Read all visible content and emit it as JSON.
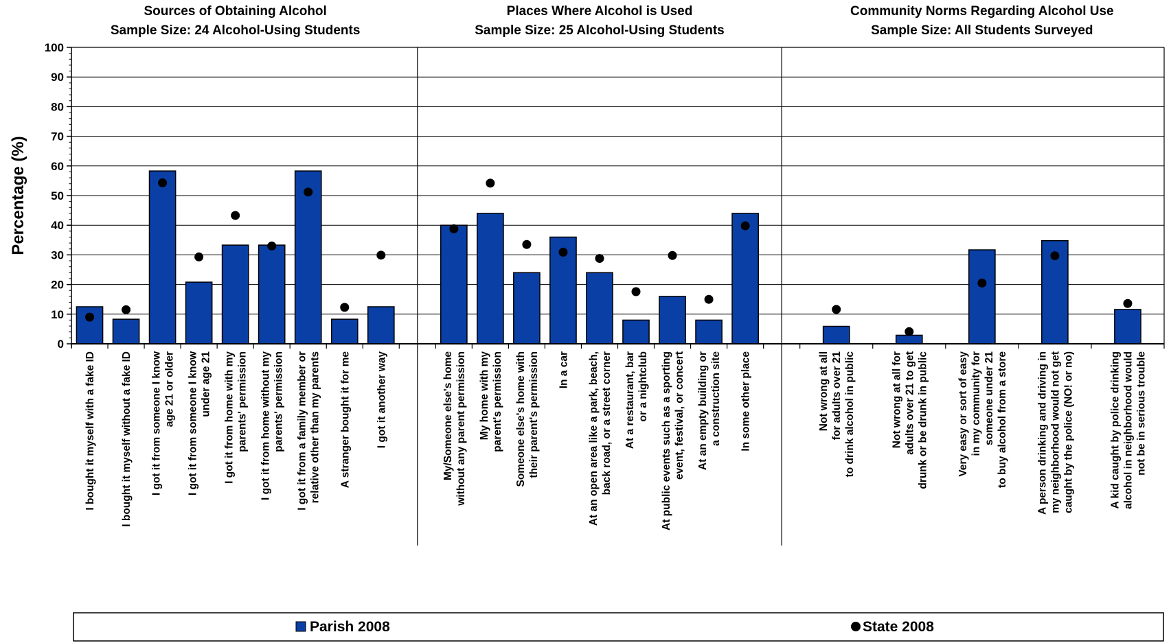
{
  "chart_data": {
    "type": "bar",
    "ylabel": "Percentage (%)",
    "ylim": [
      0,
      100
    ],
    "yticks": [
      "0",
      "10",
      "20",
      "30",
      "40",
      "50",
      "60",
      "70",
      "80",
      "90",
      "100"
    ],
    "grid": true,
    "legend_position": "bottom",
    "colors": {
      "bar": "#0a3fa6",
      "dot": "#000000"
    },
    "series": [
      {
        "name": "Parish 2008",
        "marker": "bar"
      },
      {
        "name": "State 2008",
        "marker": "dot"
      }
    ],
    "panels": [
      {
        "title_lines": [
          "Sources of Obtaining Alcohol",
          "Sample Size: 24 Alcohol-Using Students"
        ],
        "categories": [
          [
            "I bought it myself with a fake ID"
          ],
          [
            "I bought it myself without a fake ID"
          ],
          [
            "I got it from someone I know",
            "age 21 or older"
          ],
          [
            "I got it from someone I know",
            "under age 21"
          ],
          [
            "I got it from home with my",
            "parents' permission"
          ],
          [
            "I got it from home without my",
            "parents' permission"
          ],
          [
            "I got it from a family member or",
            "relative other than my parents"
          ],
          [
            "A stranger bought it for me"
          ],
          [
            "I got it another way"
          ]
        ],
        "parish": [
          12.5,
          8.3,
          58.3,
          20.8,
          33.3,
          33.3,
          58.3,
          8.3,
          12.5
        ],
        "state": [
          9.0,
          11.5,
          54.3,
          29.3,
          43.3,
          33.0,
          51.2,
          12.3,
          29.9
        ]
      },
      {
        "title_lines": [
          "Places Where Alcohol is Used",
          "Sample Size: 25 Alcohol-Using Students"
        ],
        "categories": [
          [
            "My/Someone else's home",
            "without any parent permission"
          ],
          [
            "My home with my",
            "parent's permission"
          ],
          [
            "Someone else's home with",
            "their parent's permission"
          ],
          [
            "In a car"
          ],
          [
            "At an open area like a park, beach,",
            "back road, or a street corner"
          ],
          [
            "At a restaurant, bar",
            "or a nightclub"
          ],
          [
            "At public events such as a sporting",
            "event, festival, or concert"
          ],
          [
            "At an empty building or",
            "a construction site"
          ],
          [
            "In some other place"
          ]
        ],
        "parish": [
          40.0,
          44.0,
          24.0,
          36.0,
          24.0,
          8.0,
          16.0,
          8.0,
          44.0
        ],
        "state": [
          38.8,
          54.2,
          33.5,
          30.9,
          28.8,
          17.6,
          29.8,
          15.0,
          39.8
        ]
      },
      {
        "title_lines": [
          "Community Norms Regarding Alcohol Use",
          "Sample Size: All Students Surveyed"
        ],
        "categories": [
          [
            "Not wrong at all",
            "for adults over 21",
            "to drink alcohol in public"
          ],
          [
            "Not wrong at all for",
            "adults over 21 to get",
            "drunk or be drunk in public"
          ],
          [
            "Very easy or sort of easy",
            "in my community for",
            "someone under 21",
            "to buy alcohol from a store"
          ],
          [
            "A person drinking and driving in",
            "my neighborhood would not get",
            "caught by the police (NO! or no)"
          ],
          [
            "A kid caught by police drinking",
            "alcohol in neighborhood would",
            "not be in serious trouble"
          ]
        ],
        "parish": [
          5.9,
          2.9,
          31.7,
          34.8,
          11.6
        ],
        "state": [
          11.6,
          4.1,
          20.5,
          29.7,
          13.6
        ]
      }
    ]
  }
}
